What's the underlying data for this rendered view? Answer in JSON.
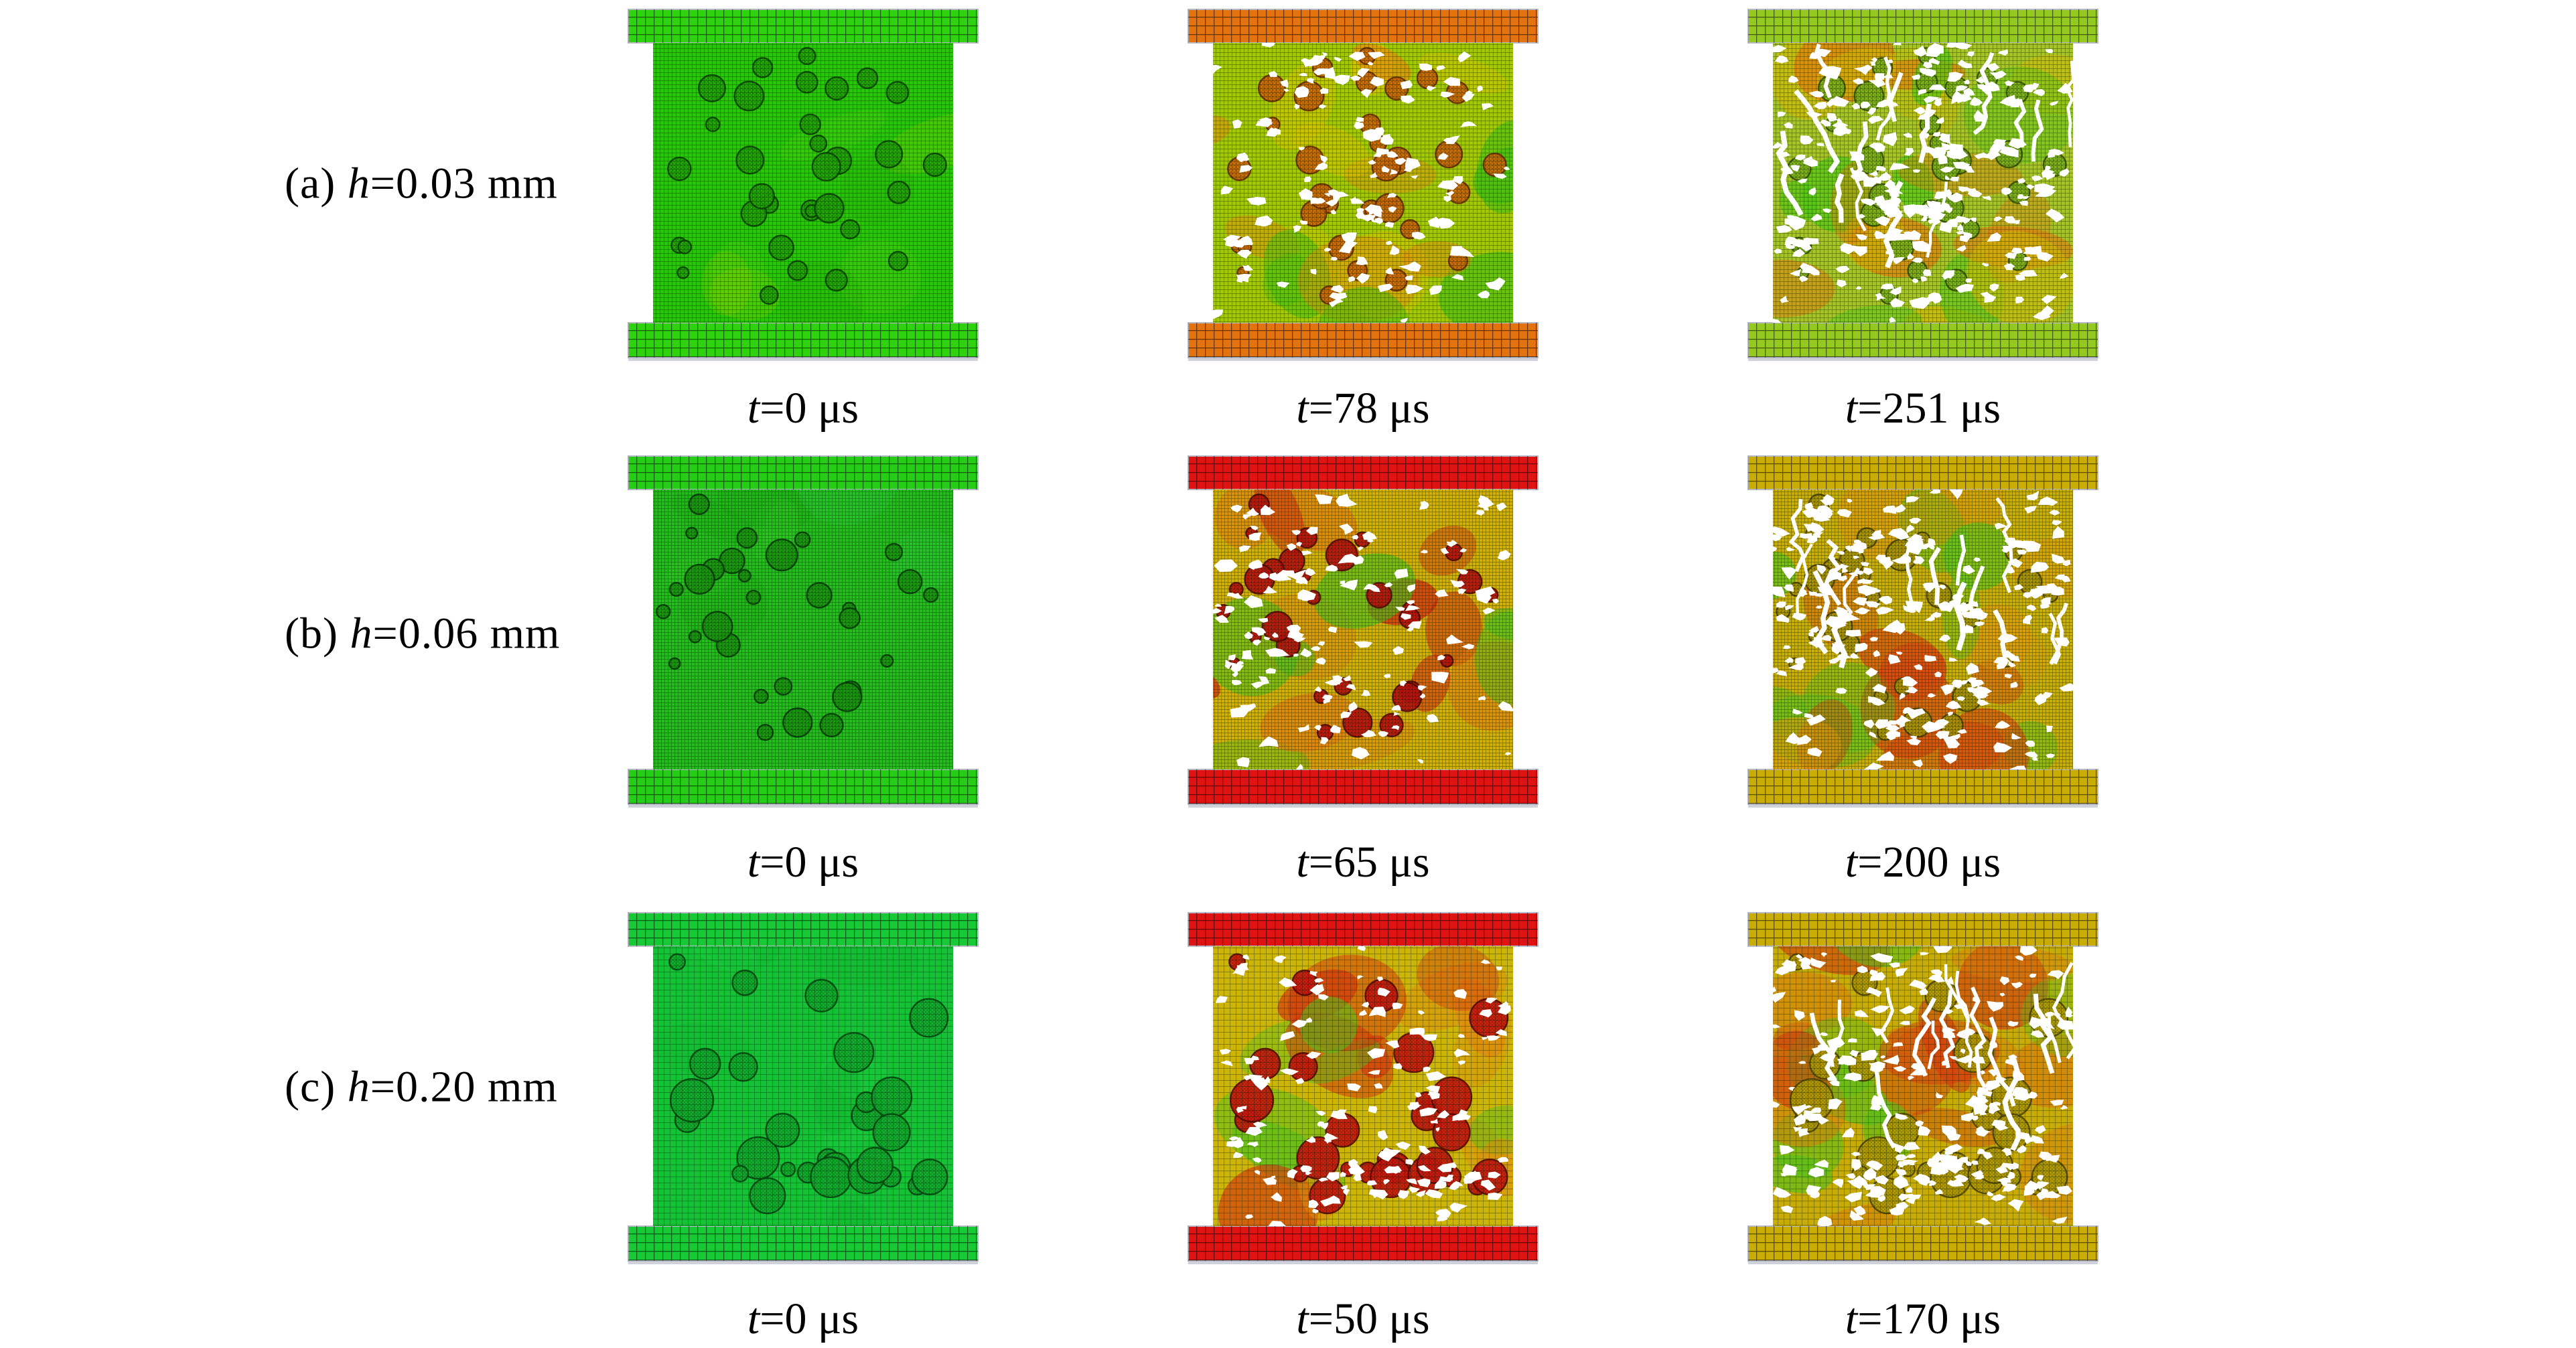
{
  "figure": {
    "rows": [
      {
        "label": {
          "prefix": "(a) ",
          "var": "h",
          "rest": "=0.03 mm"
        },
        "mesh_cell": 6,
        "platen_cell": 13,
        "inclusions": {
          "count": 34,
          "rmin": 8,
          "rmax": 22,
          "seed": 11
        },
        "panels": [
          {
            "caption": {
              "var": "t",
              "rest": "=0 μs"
            },
            "damage": 0,
            "colors": {
              "platen": "#2ed20e",
              "body": "#2cc50d",
              "accents": [
                "#63d819",
                "#b9d400",
                "#1f9b06"
              ],
              "inclusion": "#27ad0c",
              "outline": "#0b4a02"
            }
          },
          {
            "caption": {
              "var": "t",
              "rest": "=78 μs"
            },
            "damage": 0.35,
            "colors": {
              "platen": "#e2730f",
              "body": "#a3c709",
              "accents": [
                "#d8c305",
                "#e08b12",
                "#45bd14"
              ],
              "inclusion": "#d4700d",
              "outline": "#6d3302"
            }
          },
          {
            "caption": {
              "var": "t",
              "rest": "=251 μs"
            },
            "damage": 0.85,
            "colors": {
              "platen": "#94ca20",
              "body": "#a6c32c",
              "accents": [
                "#d0b90a",
                "#dd7d10",
                "#52c41a"
              ],
              "inclusion": "#84bb22",
              "outline": "#3e5a04"
            }
          }
        ]
      },
      {
        "label": {
          "prefix": "(b) ",
          "var": "h",
          "rest": "=0.06 mm"
        },
        "mesh_cell": 5,
        "platen_cell": 13,
        "inclusions": {
          "count": 30,
          "rmin": 8,
          "rmax": 25,
          "seed": 22
        },
        "panels": [
          {
            "caption": {
              "var": "t",
              "rest": "=0 μs"
            },
            "damage": 0,
            "colors": {
              "platen": "#26cd17",
              "body": "#24bd1d",
              "accents": [
                "#3fd32a",
                "#149c0b",
                "#35d65c"
              ],
              "inclusion": "#1da512",
              "outline": "#06430a"
            }
          },
          {
            "caption": {
              "var": "t",
              "rest": "=65 μs"
            },
            "damage": 0.4,
            "colors": {
              "platen": "#df1311",
              "body": "#d2b007",
              "accents": [
                "#e07c0e",
                "#ce2111",
                "#49c11d"
              ],
              "inclusion": "#cc1410",
              "outline": "#5d0a02"
            }
          },
          {
            "caption": {
              "var": "t",
              "rest": "=200 μs"
            },
            "damage": 0.9,
            "colors": {
              "platen": "#c9ad05",
              "body": "#c9ad08",
              "accents": [
                "#55c51e",
                "#d8480e",
                "#df990b"
              ],
              "inclusion": "#b9a206",
              "outline": "#564a02"
            }
          }
        ]
      },
      {
        "label": {
          "prefix": "(c) ",
          "var": "h",
          "rest": "=0.20 mm"
        },
        "mesh_cell": 9,
        "platen_cell": 13,
        "inclusions": {
          "count": 27,
          "rmin": 10,
          "rmax": 32,
          "seed": 33
        },
        "panels": [
          {
            "caption": {
              "var": "t",
              "rest": "=0 μs"
            },
            "damage": 0,
            "colors": {
              "platen": "#17ca35",
              "body": "#15c236",
              "accents": [
                "#10ad2a",
                "#1fd848",
                "#0d9c24"
              ],
              "inclusion": "#12b32f",
              "outline": "#044d12"
            }
          },
          {
            "caption": {
              "var": "t",
              "rest": "=50 μs"
            },
            "damage": 0.45,
            "colors": {
              "platen": "#df1311",
              "body": "#cdb409",
              "accents": [
                "#d2330f",
                "#e0870e",
                "#4ec21e"
              ],
              "inclusion": "#d01b10",
              "outline": "#5d0a02"
            }
          },
          {
            "caption": {
              "var": "t",
              "rest": "=170 μs"
            },
            "damage": 0.85,
            "colors": {
              "platen": "#c9ad05",
              "body": "#c7ab06",
              "accents": [
                "#d87d0c",
                "#cf3b10",
                "#54c01d"
              ],
              "inclusion": "#b8a105",
              "outline": "#564a02"
            }
          }
        ]
      }
    ]
  }
}
